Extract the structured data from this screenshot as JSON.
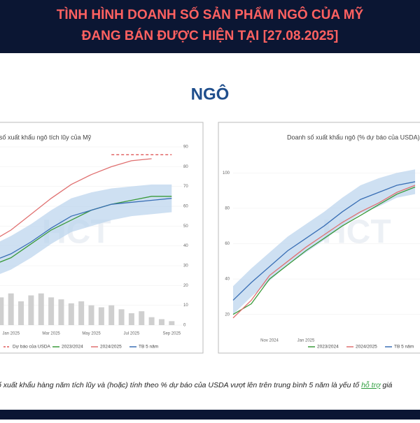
{
  "header": {
    "title_line1": "TÌNH HÌNH DOANH SỐ SẢN PHẨM NGÔ CỦA MỸ",
    "title_line2": "ĐANG BÁN ĐƯỢC HIỆN TẠI [27.08.2025]"
  },
  "slide_title": "NGÔ",
  "watermark": "HCT",
  "caption": {
    "before": "ố xuất khẩu hàng năm tích lũy và (hoặc) tính theo % dự báo của USDA vượt lên trên trung bình 5 năm là yếu tố ",
    "highlight": "hỗ trợ",
    "after": " giá"
  },
  "chart_data": [
    {
      "type": "line",
      "title": "Doanh số xuất khẩu ngô tích lũy của Mỹ",
      "categories": [
        null,
        "Jan 2025",
        null,
        "Mar 2025",
        null,
        "May 2025",
        null,
        "Jul 2025",
        null,
        "Sep 2025"
      ],
      "ylim": [
        0,
        90
      ],
      "yticks": [
        0,
        10,
        20,
        30,
        40,
        50,
        60,
        70,
        80,
        90
      ],
      "bars": [
        14,
        16,
        12,
        15,
        16,
        14,
        13,
        11,
        12,
        10,
        9,
        10,
        8,
        6,
        7,
        4,
        3,
        2
      ],
      "band_upper": [
        40,
        45,
        51,
        58,
        64,
        67,
        69,
        70,
        71,
        71
      ],
      "band_lower": [
        24,
        28,
        34,
        41,
        47,
        50,
        53,
        55,
        56,
        57
      ],
      "series": [
        {
          "name": "Dự báo của USDA",
          "color": "#e05a5a",
          "dashed": true,
          "values": [
            null,
            null,
            null,
            null,
            null,
            null,
            86,
            86,
            86,
            86
          ]
        },
        {
          "name": "2023/2024",
          "color": "#3a9a3a",
          "values": [
            30,
            34,
            41,
            48,
            53,
            58,
            61,
            63,
            65,
            65
          ]
        },
        {
          "name": "2024/2025",
          "color": "#e07070",
          "values": [
            42,
            48,
            56,
            64,
            71,
            76,
            80,
            83,
            84,
            null
          ]
        },
        {
          "name": "TB 5 năm",
          "color": "#3a6fb5",
          "values": [
            32,
            36,
            42,
            49,
            55,
            58,
            61,
            62,
            63,
            64
          ]
        }
      ]
    },
    {
      "type": "line",
      "title": "Doanh số xuất khẩu ngô (% dự báo của USDA)",
      "categories": [
        null,
        null,
        "Nov 2024",
        null,
        "Jan 2025",
        null,
        null,
        null,
        null,
        null,
        null
      ],
      "ylim": [
        10,
        110
      ],
      "yticks": [
        20,
        40,
        60,
        80,
        100
      ],
      "band_upper": [
        36,
        46,
        55,
        64,
        71,
        78,
        86,
        93,
        97,
        100,
        102
      ],
      "band_lower": [
        20,
        30,
        39,
        48,
        55,
        62,
        70,
        77,
        81,
        86,
        88
      ],
      "series": [
        {
          "name": "2023/2024",
          "color": "#3a9a3a",
          "values": [
            20,
            26,
            40,
            48,
            56,
            63,
            70,
            76,
            82,
            88,
            92
          ]
        },
        {
          "name": "2024/2025",
          "color": "#e07070",
          "values": [
            18,
            28,
            42,
            50,
            58,
            65,
            72,
            78,
            83,
            89,
            93
          ]
        },
        {
          "name": "TB 5 năm",
          "color": "#3a6fb5",
          "values": [
            28,
            38,
            47,
            56,
            63,
            70,
            78,
            85,
            89,
            93,
            95
          ]
        }
      ]
    }
  ]
}
